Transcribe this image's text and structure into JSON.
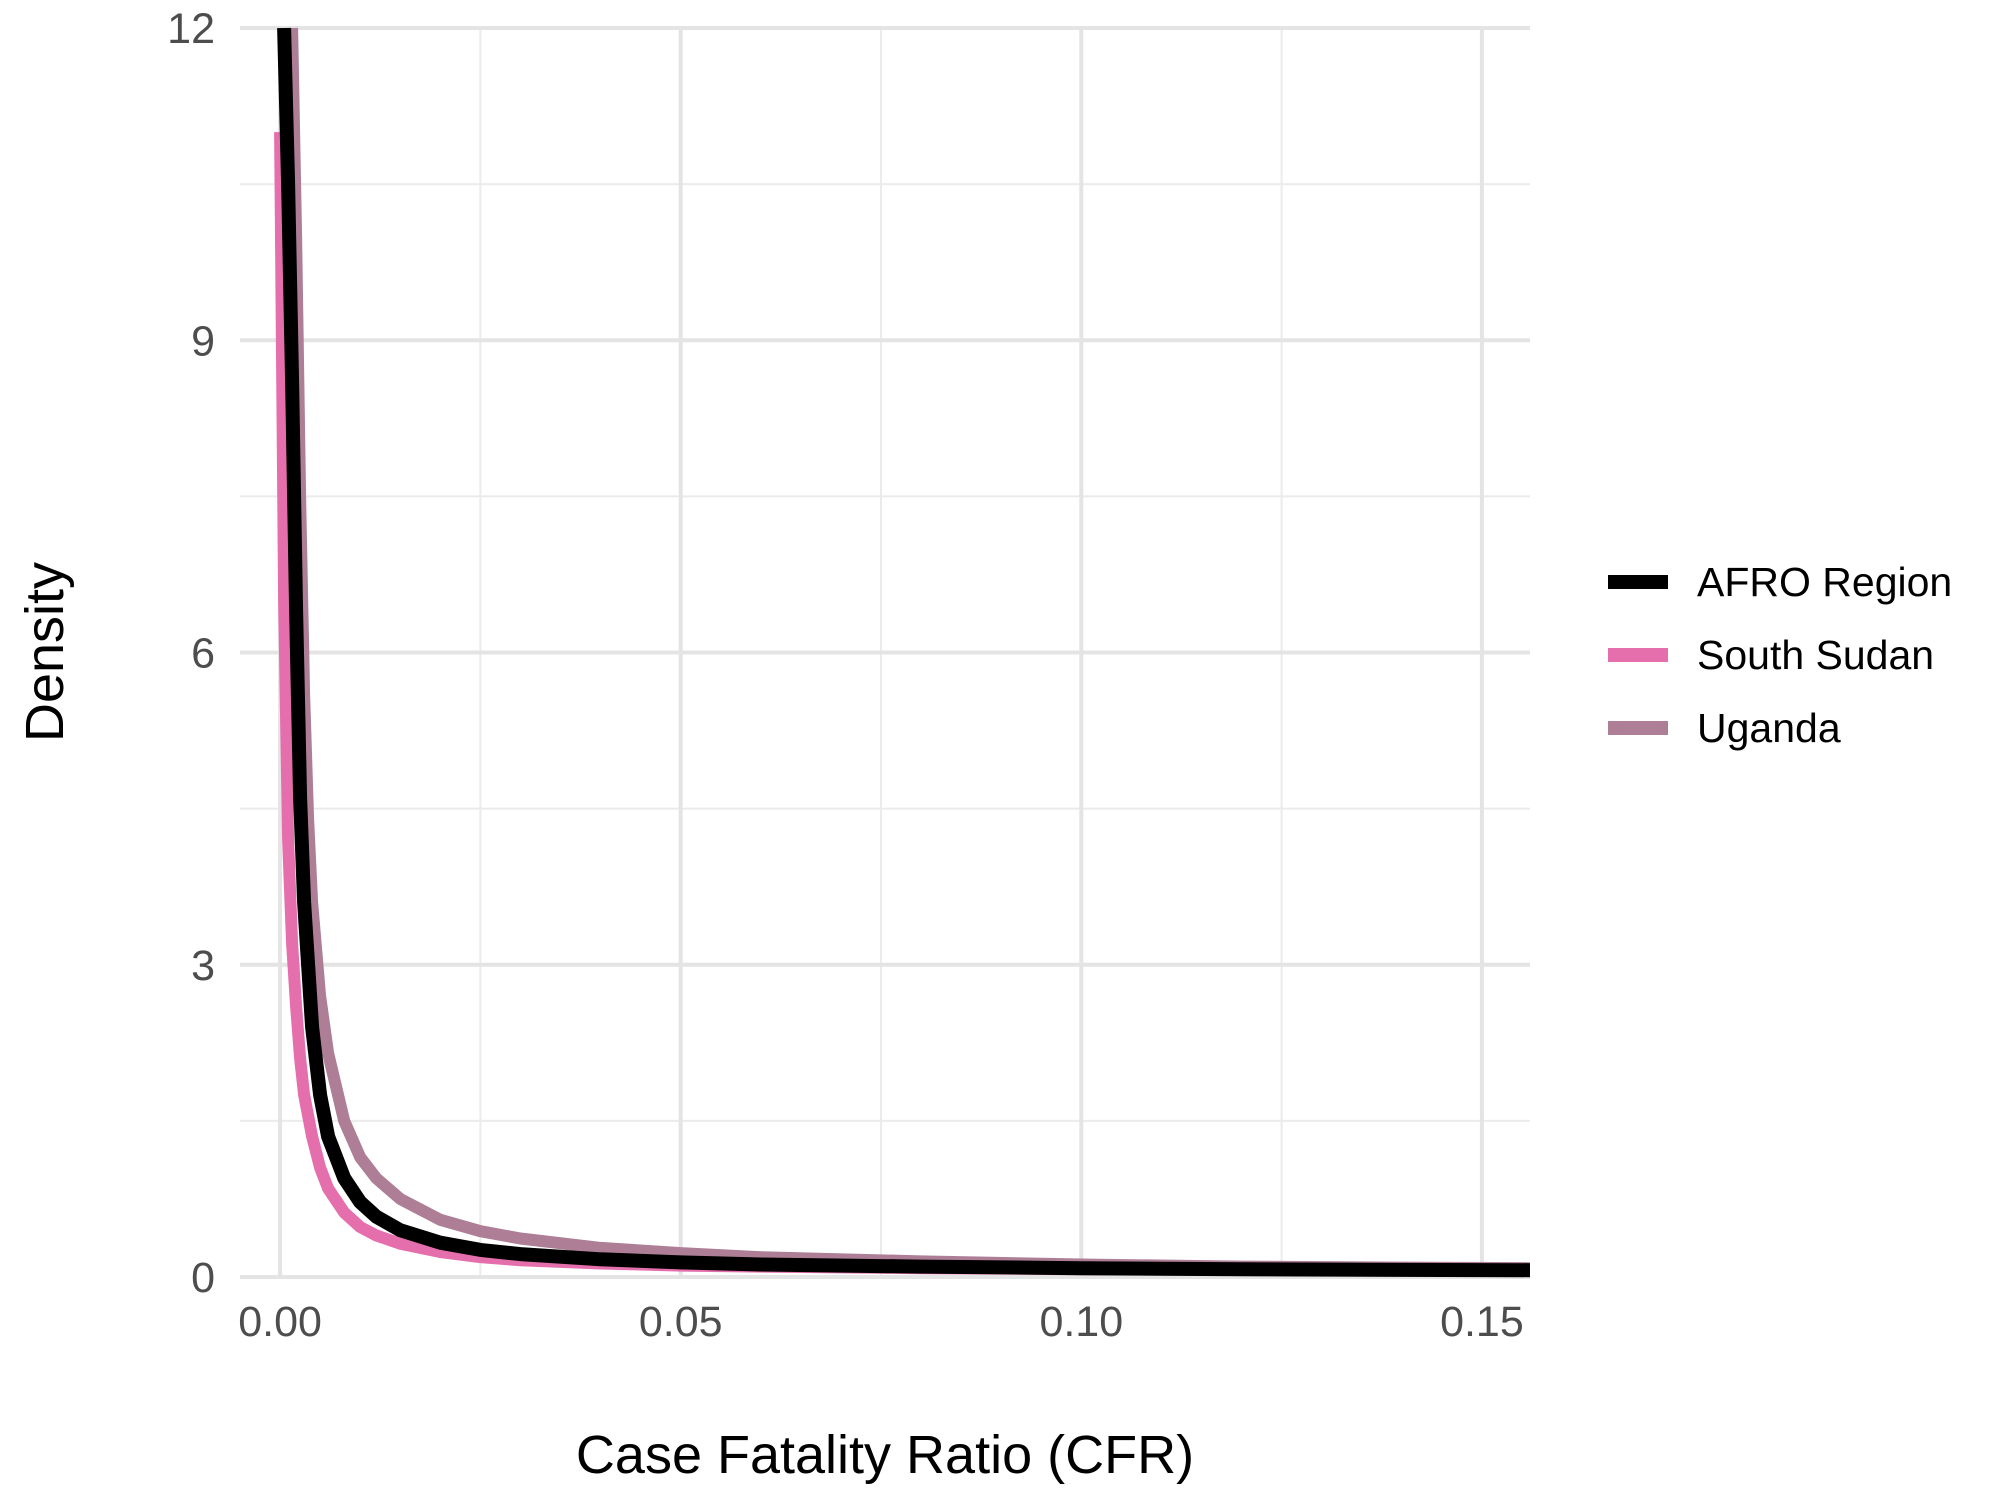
{
  "chart_data": {
    "type": "line",
    "xlabel": "Case Fatality Ratio (CFR)",
    "ylabel": "Density",
    "xlim": [
      -0.005,
      0.156
    ],
    "ylim": [
      0,
      12
    ],
    "x_ticks": [
      0.0,
      0.05,
      0.1,
      0.15
    ],
    "x_tick_labels": [
      "0.00",
      "0.05",
      "0.10",
      "0.15"
    ],
    "y_ticks": [
      0,
      3,
      6,
      9,
      12
    ],
    "y_tick_labels": [
      "0",
      "3",
      "6",
      "9",
      "12"
    ],
    "grid": true,
    "legend_position": "right",
    "series": [
      {
        "name": "AFRO Region",
        "color": "#000000",
        "x": [
          0.0005,
          0.001,
          0.0015,
          0.002,
          0.0025,
          0.003,
          0.004,
          0.005,
          0.006,
          0.008,
          0.01,
          0.012,
          0.015,
          0.02,
          0.025,
          0.03,
          0.04,
          0.05,
          0.06,
          0.08,
          0.1,
          0.12,
          0.14,
          0.156
        ],
        "values": [
          12.0,
          10.5,
          8.6,
          6.4,
          4.6,
          3.6,
          2.4,
          1.75,
          1.35,
          0.95,
          0.72,
          0.58,
          0.45,
          0.33,
          0.26,
          0.22,
          0.17,
          0.14,
          0.12,
          0.1,
          0.085,
          0.075,
          0.068,
          0.065
        ]
      },
      {
        "name": "South Sudan",
        "color": "#e56fad",
        "x": [
          0.0,
          0.0005,
          0.001,
          0.0015,
          0.002,
          0.0025,
          0.003,
          0.004,
          0.005,
          0.006,
          0.008,
          0.01,
          0.012,
          0.015,
          0.02,
          0.025,
          0.03,
          0.04,
          0.05,
          0.06,
          0.08,
          0.1,
          0.12,
          0.14,
          0.156
        ],
        "values": [
          11.0,
          6.5,
          4.2,
          3.2,
          2.6,
          2.1,
          1.75,
          1.35,
          1.05,
          0.85,
          0.62,
          0.48,
          0.4,
          0.32,
          0.24,
          0.19,
          0.16,
          0.13,
          0.11,
          0.1,
          0.085,
          0.075,
          0.068,
          0.062,
          0.06
        ]
      },
      {
        "name": "Uganda",
        "color": "#ad7e96",
        "x": [
          0.0015,
          0.002,
          0.0025,
          0.003,
          0.0035,
          0.004,
          0.005,
          0.006,
          0.008,
          0.01,
          0.012,
          0.015,
          0.02,
          0.025,
          0.03,
          0.04,
          0.05,
          0.06,
          0.08,
          0.1,
          0.12,
          0.14,
          0.156
        ],
        "values": [
          12.0,
          10.0,
          7.5,
          5.6,
          4.4,
          3.6,
          2.7,
          2.15,
          1.5,
          1.15,
          0.95,
          0.75,
          0.55,
          0.44,
          0.37,
          0.28,
          0.23,
          0.19,
          0.15,
          0.12,
          0.1,
          0.09,
          0.085
        ]
      }
    ]
  }
}
